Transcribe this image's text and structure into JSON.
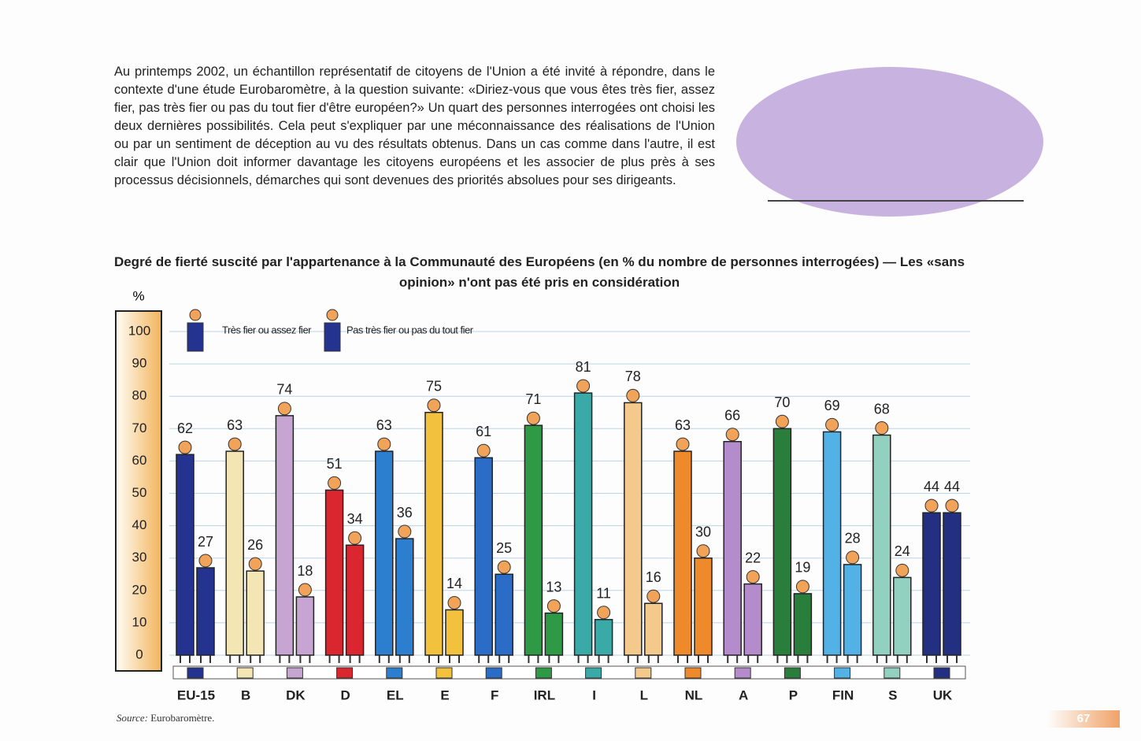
{
  "text": "Au printemps 2002, un échantillon représentatif de citoyens de l'Union a été invité à répondre, dans le contexte d'une étude Eurobaromètre, à la question suivante: «Diriez-vous que vous êtes très fier, assez fier, pas très fier ou pas du tout fier d'être européen?» Un quart des personnes interrogées ont choisi les deux dernières possibilités. Cela peut s'expliquer par une méconnaissance des réalisations de l'Union ou par un sentiment de déception au vu des résultats obtenus. Dans un cas comme dans l'autre, il est clair que l'Union doit informer davantage les citoyens européens et les associer de plus près à ses processus décisionnels, démarches qui sont devenues des priorités absolues pour ses dirigeants.",
  "chart_data": {
    "type": "bar",
    "title": "Degré de fierté suscité par l'appartenance à la Communauté des Européens (en % du nombre de personnes interrogées) — Les «sans opinion» n'ont pas été pris en considération",
    "y_label": "%",
    "categories": [
      "EU-15",
      "B",
      "DK",
      "D",
      "EL",
      "E",
      "F",
      "IRL",
      "I",
      "L",
      "NL",
      "A",
      "P",
      "FIN",
      "S",
      "UK"
    ],
    "colors": [
      "#24338f",
      "#f4e6b4",
      "#c7a5d3",
      "#d9262f",
      "#2c7fcf",
      "#f2c23e",
      "#2a6cc6",
      "#2f9a46",
      "#3aaaa9",
      "#f4c98c",
      "#ef8a2c",
      "#b48bcb",
      "#2a7e3b",
      "#52b2e6",
      "#92d0c0",
      "#233082"
    ],
    "series": [
      {
        "name": "Très fier ou assez fier",
        "values": [
          62,
          63,
          74,
          51,
          63,
          75,
          61,
          71,
          81,
          78,
          63,
          66,
          70,
          69,
          68,
          44
        ]
      },
      {
        "name": "Pas très fier ou pas du tout fier",
        "values": [
          27,
          26,
          18,
          34,
          36,
          14,
          25,
          13,
          11,
          16,
          30,
          22,
          19,
          28,
          24,
          44
        ]
      }
    ],
    "ylim": [
      0,
      100
    ],
    "yticks": [
      0,
      10,
      20,
      30,
      40,
      50,
      60,
      70,
      80,
      90,
      100
    ],
    "grid": true,
    "source_label": "Source:",
    "source": "Eurobaromètre."
  },
  "page_number": "67"
}
